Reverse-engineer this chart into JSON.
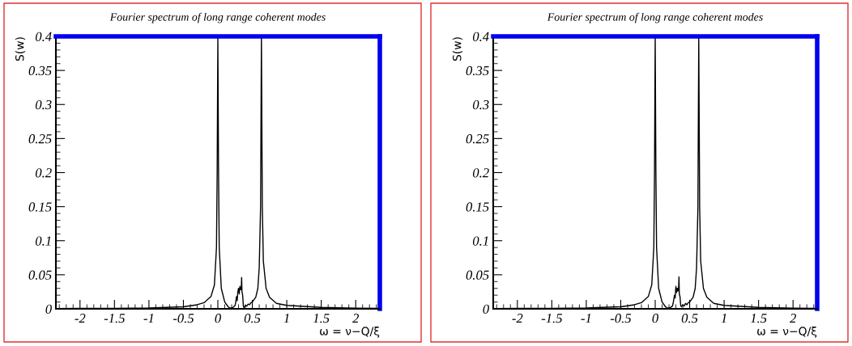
{
  "chart_data": [
    {
      "type": "line",
      "title": "Fourier spectrum of long range coherent modes",
      "xlabel": "ω = ν−Q/ξ",
      "ylabel": "S(w)",
      "xlim": [
        -2.35,
        2.35
      ],
      "ylim": [
        0,
        0.4
      ],
      "xticks": [
        -2,
        -1.5,
        -1,
        -0.5,
        0,
        0.5,
        1,
        1.5,
        2
      ],
      "yticks": [
        0,
        0.05,
        0.1,
        0.15,
        0.2,
        0.25,
        0.3,
        0.35,
        0.4
      ],
      "grid": false,
      "legend": false,
      "series": [
        {
          "color": "#000000",
          "x": [
            -2.35,
            -2,
            -1.5,
            -1,
            -0.5,
            -0.3,
            -0.2,
            -0.1,
            -0.05,
            -0.02,
            -0.01,
            0,
            0.01,
            0.02,
            0.05,
            0.1,
            0.15,
            0.18,
            0.22,
            0.25,
            0.26,
            0.27,
            0.28,
            0.29,
            0.3,
            0.31,
            0.32,
            0.33,
            0.34,
            0.345,
            0.35,
            0.36,
            0.37,
            0.38,
            0.4,
            0.42,
            0.44,
            0.46,
            0.48,
            0.5,
            0.55,
            0.58,
            0.6,
            0.62,
            0.632,
            0.645,
            0.66,
            0.7,
            0.75,
            0.85,
            1,
            1.5,
            2,
            2.35
          ],
          "values": [
            0.0005,
            0.0006,
            0.0008,
            0.0012,
            0.003,
            0.006,
            0.009,
            0.018,
            0.035,
            0.09,
            0.2,
            0.4,
            0.2,
            0.09,
            0.03,
            0.01,
            0.003,
            0.001,
            0.002,
            0.005,
            0.01,
            0.018,
            0.012,
            0.025,
            0.03,
            0.022,
            0.033,
            0.028,
            0.03,
            0.046,
            0.025,
            0.02,
            0.004,
            0.002,
            0.005,
            0.004,
            0.007,
            0.006,
            0.009,
            0.01,
            0.017,
            0.03,
            0.06,
            0.15,
            0.4,
            0.15,
            0.07,
            0.03,
            0.017,
            0.008,
            0.005,
            0.002,
            0.001,
            0.0008
          ]
        }
      ]
    },
    {
      "type": "line",
      "title": "Fourier spectrum of long range coherent modes",
      "xlabel": "ω = ν−Q/ξ",
      "ylabel": "S(w)",
      "xlim": [
        -2.35,
        2.35
      ],
      "ylim": [
        0,
        0.4
      ],
      "xticks": [
        -2,
        -1.5,
        -1,
        -0.5,
        0,
        0.5,
        1,
        1.5,
        2
      ],
      "yticks": [
        0,
        0.05,
        0.1,
        0.15,
        0.2,
        0.25,
        0.3,
        0.35,
        0.4
      ],
      "grid": false,
      "legend": false,
      "series": [
        {
          "color": "#000000",
          "x": [
            -2.35,
            -2,
            -1.5,
            -1,
            -0.5,
            -0.3,
            -0.2,
            -0.1,
            -0.05,
            -0.02,
            -0.01,
            0,
            0.01,
            0.02,
            0.05,
            0.1,
            0.15,
            0.18,
            0.22,
            0.25,
            0.26,
            0.27,
            0.28,
            0.29,
            0.3,
            0.31,
            0.32,
            0.33,
            0.34,
            0.345,
            0.35,
            0.36,
            0.37,
            0.38,
            0.4,
            0.42,
            0.44,
            0.46,
            0.48,
            0.5,
            0.55,
            0.58,
            0.6,
            0.62,
            0.632,
            0.645,
            0.66,
            0.7,
            0.75,
            0.85,
            1,
            1.5,
            2,
            2.35
          ],
          "values": [
            0.0005,
            0.0006,
            0.0008,
            0.0012,
            0.003,
            0.006,
            0.009,
            0.018,
            0.035,
            0.09,
            0.2,
            0.4,
            0.2,
            0.09,
            0.03,
            0.01,
            0.003,
            0.001,
            0.002,
            0.004,
            0.008,
            0.014,
            0.02,
            0.016,
            0.033,
            0.024,
            0.03,
            0.026,
            0.032,
            0.047,
            0.022,
            0.018,
            0.005,
            0.003,
            0.006,
            0.004,
            0.008,
            0.006,
            0.009,
            0.01,
            0.017,
            0.03,
            0.06,
            0.15,
            0.4,
            0.15,
            0.07,
            0.03,
            0.017,
            0.008,
            0.005,
            0.002,
            0.001,
            0.0008
          ]
        }
      ]
    }
  ]
}
